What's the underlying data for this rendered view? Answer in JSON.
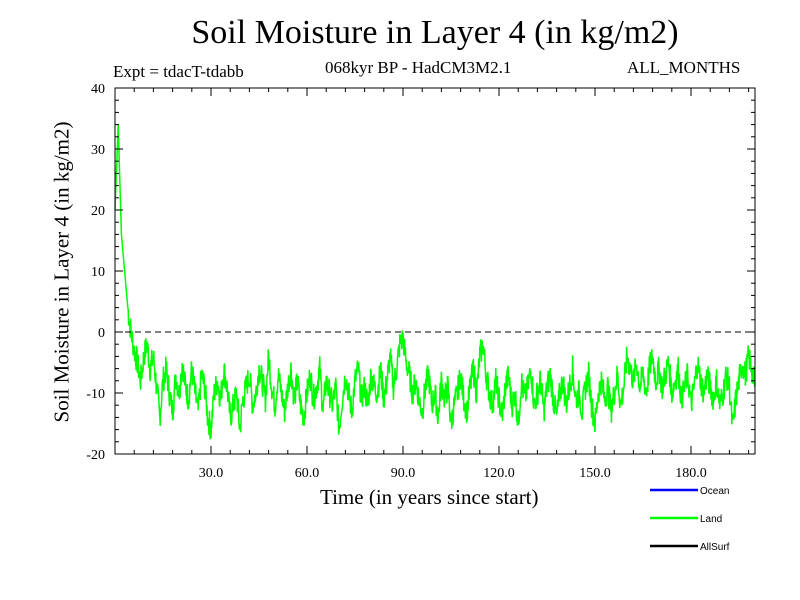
{
  "chart_data": {
    "type": "line",
    "title": "Soil Moisture in Layer 4 (in kg/m2)",
    "subtitle": "068kyr BP - HadCM3M2.1",
    "expt_label": "Expt = tdacT-tdabb",
    "period_label": "ALL_MONTHS",
    "xlabel": "Time (in years since start)",
    "ylabel": "Soil Moisture in Layer 4 (in kg/m2)",
    "xlim": [
      0,
      200
    ],
    "ylim": [
      -20,
      40
    ],
    "xticks": [
      30,
      60,
      90,
      120,
      150,
      180
    ],
    "xtick_labels": [
      "30.0",
      "60.0",
      "90.0",
      "120.0",
      "150.0",
      "180.0"
    ],
    "yticks": [
      -20,
      -10,
      0,
      10,
      20,
      30,
      40
    ],
    "ytick_labels": [
      "-20",
      "-10",
      "0",
      "10",
      "20",
      "30",
      "40"
    ],
    "reference_line": {
      "y": 0,
      "style": "dashed"
    },
    "legend": [
      {
        "name": "Ocean",
        "color": "#0000ff"
      },
      {
        "name": "Land",
        "color": "#00ff00"
      },
      {
        "name": "AllSurf",
        "color": "#000000"
      }
    ],
    "series": [
      {
        "name": "Land",
        "color": "#00ff00",
        "x": [
          0,
          1,
          2,
          3,
          4,
          5,
          6,
          7,
          8,
          9,
          10,
          11,
          12,
          13,
          14,
          15,
          16,
          17,
          18,
          19,
          20,
          21,
          22,
          23,
          24,
          25,
          26,
          27,
          28,
          29,
          30,
          31,
          32,
          33,
          34,
          35,
          36,
          37,
          38,
          39,
          40,
          41,
          42,
          43,
          44,
          45,
          46,
          47,
          48,
          49,
          50,
          51,
          52,
          53,
          54,
          55,
          56,
          57,
          58,
          59,
          60,
          61,
          62,
          63,
          64,
          65,
          66,
          67,
          68,
          69,
          70,
          71,
          72,
          73,
          74,
          75,
          76,
          77,
          78,
          79,
          80,
          81,
          82,
          83,
          84,
          85,
          86,
          87,
          88,
          89,
          90,
          91,
          92,
          93,
          94,
          95,
          96,
          97,
          98,
          99,
          100,
          101,
          102,
          103,
          104,
          105,
          106,
          107,
          108,
          109,
          110,
          111,
          112,
          113,
          114,
          115,
          116,
          117,
          118,
          119,
          120,
          121,
          122,
          123,
          124,
          125,
          126,
          127,
          128,
          129,
          130,
          131,
          132,
          133,
          134,
          135,
          136,
          137,
          138,
          139,
          140,
          141,
          142,
          143,
          144,
          145,
          146,
          147,
          148,
          149,
          150,
          151,
          152,
          153,
          154,
          155,
          156,
          157,
          158,
          159,
          160,
          161,
          162,
          163,
          164,
          165,
          166,
          167,
          168,
          169,
          170,
          171,
          172,
          173,
          174,
          175,
          176,
          177,
          178,
          179,
          180,
          181,
          182,
          183,
          184,
          185,
          186,
          187,
          188,
          189,
          190,
          191,
          192,
          193,
          194,
          195,
          196,
          197,
          198,
          199,
          200
        ],
        "values": [
          20,
          34,
          16,
          10,
          4,
          0,
          -3,
          -5,
          -8,
          -4,
          -2,
          -6,
          -4,
          -9,
          -14,
          -8,
          -6,
          -10,
          -13,
          -7,
          -10,
          -5,
          -9,
          -11,
          -6,
          -10,
          -13,
          -7,
          -9,
          -14,
          -16,
          -10,
          -8,
          -11,
          -6,
          -9,
          -14,
          -12,
          -10,
          -16,
          -11,
          -9,
          -7,
          -12,
          -10,
          -6,
          -8,
          -11,
          -4,
          -9,
          -12,
          -7,
          -10,
          -13,
          -9,
          -6,
          -11,
          -8,
          -12,
          -14,
          -10,
          -7,
          -11,
          -9,
          -6,
          -13,
          -8,
          -10,
          -12,
          -9,
          -16,
          -11,
          -7,
          -10,
          -13,
          -8,
          -6,
          -11,
          -9,
          -12,
          -7,
          -9,
          -10,
          -6,
          -11,
          -8,
          -4,
          -9,
          -6,
          -2,
          -1,
          -5,
          -7,
          -10,
          -8,
          -11,
          -13,
          -9,
          -7,
          -12,
          -10,
          -14,
          -8,
          -11,
          -9,
          -15,
          -12,
          -10,
          -7,
          -11,
          -13,
          -9,
          -6,
          -10,
          -4,
          -2,
          -7,
          -10,
          -12,
          -8,
          -11,
          -14,
          -9,
          -7,
          -12,
          -10,
          -15,
          -8,
          -11,
          -9,
          -6,
          -12,
          -10,
          -8,
          -13,
          -9,
          -7,
          -11,
          -14,
          -10,
          -8,
          -12,
          -9,
          -6,
          -11,
          -10,
          -13,
          -9,
          -7,
          -12,
          -15,
          -10,
          -8,
          -11,
          -9,
          -13,
          -10,
          -7,
          -12,
          -9,
          -4,
          -6,
          -8,
          -5,
          -9,
          -7,
          -10,
          -6,
          -4,
          -8,
          -6,
          -9,
          -7,
          -5,
          -10,
          -8,
          -6,
          -11,
          -9,
          -7,
          -12,
          -9,
          -5,
          -8,
          -10,
          -7,
          -9,
          -11,
          -8,
          -12,
          -10,
          -7,
          -9,
          -16,
          -11,
          -8,
          -5,
          -7,
          -4,
          -6,
          -9
        ]
      }
    ]
  }
}
